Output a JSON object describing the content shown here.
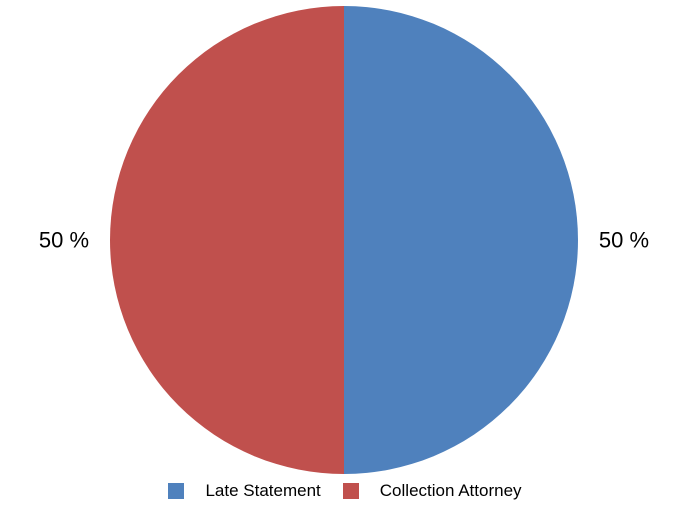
{
  "chart_data": {
    "type": "pie",
    "categories": [
      "Late Statement",
      "Collection Attorney"
    ],
    "values": [
      50,
      50
    ],
    "data_labels": [
      "50 %",
      "50 %"
    ],
    "colors": [
      "#4f81bd",
      "#c0504d"
    ],
    "title": "",
    "legend_position": "bottom",
    "start_angle": "12 o'clock",
    "direction": "clockwise"
  },
  "legend": {
    "items": [
      {
        "label": "Late Statement",
        "color": "#4f81bd"
      },
      {
        "label": "Collection Attorney",
        "color": "#c0504d"
      }
    ]
  }
}
